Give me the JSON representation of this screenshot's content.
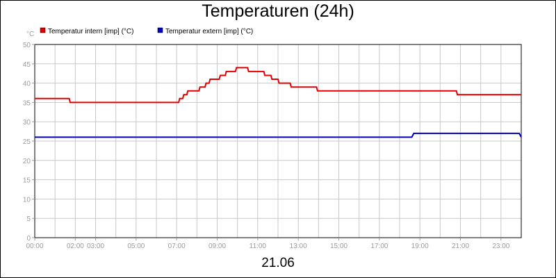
{
  "chart_data": {
    "type": "line",
    "title": "Temperaturen (24h)",
    "subtitle": "21.06",
    "y_unit": "°C",
    "ylim": [
      0,
      50
    ],
    "y_ticks": [
      "0",
      "5",
      "10",
      "15",
      "20",
      "25",
      "30",
      "35",
      "40",
      "45",
      "50"
    ],
    "xlim_hours": [
      0,
      24
    ],
    "x_ticks": [
      {
        "label": "00:00",
        "hour": 0
      },
      {
        "label": "02:00",
        "hour": 2
      },
      {
        "label": "03:00",
        "hour": 3
      },
      {
        "label": "05:00",
        "hour": 5
      },
      {
        "label": "07:00",
        "hour": 7
      },
      {
        "label": "09:00",
        "hour": 9
      },
      {
        "label": "11:00",
        "hour": 11
      },
      {
        "label": "13:00",
        "hour": 13
      },
      {
        "label": "15:00",
        "hour": 15
      },
      {
        "label": "17:00",
        "hour": 17
      },
      {
        "label": "19:00",
        "hour": 19
      },
      {
        "label": "21:00",
        "hour": 21
      },
      {
        "label": "23:00",
        "hour": 23
      }
    ],
    "grid": true,
    "legend_position": "top-left",
    "series": [
      {
        "name": "Temperatur intern [imp] (°C)",
        "color": "#e00000",
        "x": [
          0,
          1.7,
          1.75,
          7.1,
          7.15,
          7.3,
          7.35,
          7.5,
          7.55,
          7.75,
          7.8,
          8.1,
          8.15,
          8.4,
          8.45,
          8.6,
          8.65,
          9.1,
          9.15,
          9.4,
          9.45,
          9.9,
          9.95,
          10.2,
          10.25,
          10.5,
          10.55,
          11.3,
          11.35,
          11.65,
          11.7,
          12.0,
          12.05,
          12.6,
          12.65,
          13.9,
          13.95,
          20.8,
          20.85,
          24.0
        ],
        "y": [
          36,
          36,
          35,
          35,
          36,
          36,
          37,
          37,
          38,
          38,
          38,
          38,
          39,
          39,
          40,
          40,
          41,
          41,
          42,
          42,
          43,
          43,
          44,
          44,
          44,
          44,
          43,
          43,
          42,
          42,
          41,
          41,
          40,
          40,
          39,
          39,
          38,
          38,
          37,
          37
        ]
      },
      {
        "name": "Temperatur extern [imp] (°C)",
        "color": "#0000c8",
        "x": [
          0,
          18.6,
          18.7,
          23.9,
          24.0
        ],
        "y": [
          26,
          26,
          27,
          27,
          26
        ]
      }
    ]
  }
}
